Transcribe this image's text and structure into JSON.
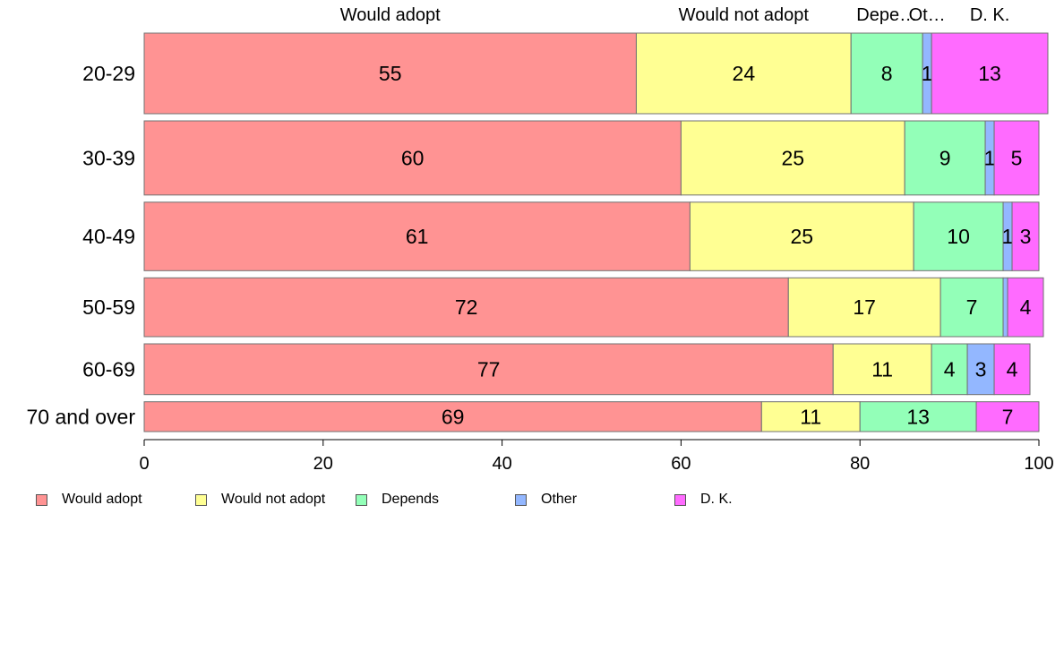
{
  "chart_data": {
    "type": "bar",
    "orientation": "horizontal",
    "stacked": true,
    "categories": [
      "20-29",
      "30-39",
      "40-49",
      "50-59",
      "60-69",
      "70 and over"
    ],
    "category_weights": [
      1.0,
      0.92,
      0.85,
      0.73,
      0.63,
      0.37
    ],
    "series": [
      {
        "name": "Would adopt",
        "color": "#ff9393",
        "values": [
          55,
          60,
          61,
          72,
          77,
          69
        ]
      },
      {
        "name": "Would not adopt",
        "color": "#ffff93",
        "values": [
          24,
          25,
          25,
          17,
          11,
          11
        ]
      },
      {
        "name": "Depends",
        "color": "#93ffb8",
        "values": [
          8,
          9,
          10,
          7,
          4,
          13
        ]
      },
      {
        "name": "Other",
        "color": "#93b7ff",
        "values": [
          1,
          1,
          1,
          0.5,
          3,
          0
        ]
      },
      {
        "name": "D. K.",
        "color": "#ff6bff",
        "values": [
          13,
          5,
          3,
          4,
          4,
          7
        ]
      }
    ],
    "data_labels": [
      [
        "55",
        "24",
        "8",
        "1",
        "13"
      ],
      [
        "60",
        "25",
        "9",
        "1",
        "5"
      ],
      [
        "61",
        "25",
        "10",
        "1",
        "3"
      ],
      [
        "72",
        "17",
        "7",
        "",
        "4"
      ],
      [
        "77",
        "11",
        "4",
        "3",
        "4"
      ],
      [
        "69",
        "11",
        "13",
        "",
        "7"
      ]
    ],
    "top_labels": [
      "Would adopt",
      "Would not adopt",
      "Depe…",
      "Ot…",
      "D. K."
    ],
    "xlim": [
      0,
      100
    ],
    "xticks": [
      0,
      20,
      40,
      60,
      80,
      100
    ],
    "xtick_labels": [
      "0",
      "20",
      "40",
      "60",
      "80",
      "100"
    ],
    "grid": false,
    "legend_position": "bottom-left"
  }
}
